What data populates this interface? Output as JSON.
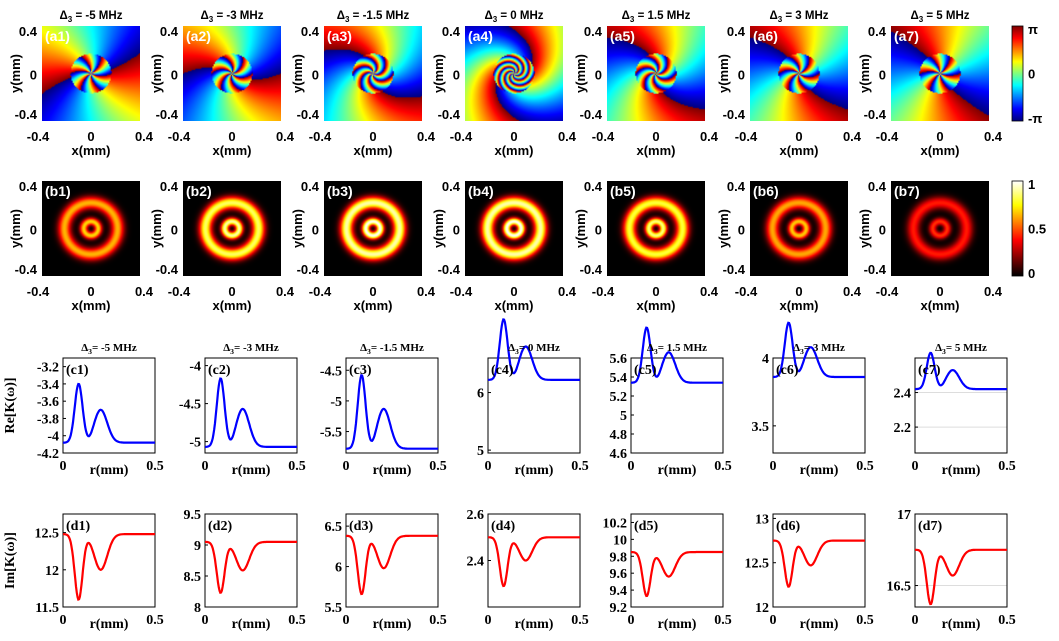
{
  "chart_data": [
    {
      "type": "heatmap",
      "row": "a",
      "description_row": "phase maps",
      "xlabel": "x(mm)",
      "ylabel": "y(mm)",
      "xticks": [
        "-0.4",
        "0",
        "0.4"
      ],
      "yticks": [
        "0.4",
        "0",
        "-0.4"
      ],
      "colorbar": {
        "ticks": [
          "π",
          "0",
          "-π"
        ],
        "colormap": "jet"
      },
      "panels": [
        {
          "label": "(a1)",
          "title_sym": "Δ",
          "title_sub": "3",
          "title_val": " = -5 MHz",
          "twist": 0.6
        },
        {
          "label": "(a2)",
          "title_sym": "Δ",
          "title_sub": "3",
          "title_val": " = -3 MHz",
          "twist": 1.1
        },
        {
          "label": "(a3)",
          "title_sym": "Δ",
          "title_sub": "3",
          "title_val": " = -1.5 MHz",
          "twist": 2.0
        },
        {
          "label": "(a4)",
          "title_sym": "Δ",
          "title_sub": "3",
          "title_val": " = 0 MHz",
          "twist": 4.0
        },
        {
          "label": "(a5)",
          "title_sym": "Δ",
          "title_sub": "3",
          "title_val": " = 1.5 MHz",
          "twist": 1.6
        },
        {
          "label": "(a6)",
          "title_sym": "Δ",
          "title_sub": "3",
          "title_val": " = 3 MHz",
          "twist": 0.9
        },
        {
          "label": "(a7)",
          "title_sym": "Δ",
          "title_sub": "3",
          "title_val": " = 5 MHz",
          "twist": 0.5
        }
      ]
    },
    {
      "type": "heatmap",
      "row": "b",
      "xlabel": "x(mm)",
      "ylabel": "y(mm)",
      "xticks": [
        "-0.4",
        "0",
        "0.4"
      ],
      "yticks": [
        "0.4",
        "0",
        "-0.4"
      ],
      "colorbar": {
        "ticks": [
          "1",
          "0.5",
          "0"
        ],
        "colormap": "hot"
      },
      "panels": [
        {
          "label": "(b1)",
          "brightness": 0.7
        },
        {
          "label": "(b2)",
          "brightness": 0.92
        },
        {
          "label": "(b3)",
          "brightness": 1.0
        },
        {
          "label": "(b4)",
          "brightness": 1.0
        },
        {
          "label": "(b5)",
          "brightness": 0.88
        },
        {
          "label": "(b6)",
          "brightness": 0.68
        },
        {
          "label": "(b7)",
          "brightness": 0.45
        }
      ]
    },
    {
      "type": "line",
      "row": "c",
      "xlabel": "r(mm)",
      "ylabel": "Re[K(ω)]",
      "x_range": [
        0,
        0.5
      ],
      "xticks": [
        "0",
        "0.5"
      ],
      "series_color": "#0000ff",
      "panels": [
        {
          "label": "(c1)",
          "title_sym": "Δ",
          "title_sub": "3",
          "title_val": "= -5 MHz",
          "ylim": [
            -4.2,
            -3.1
          ],
          "yticks": [
            -3.2,
            -3.4,
            -3.6,
            -3.8,
            -4,
            -4.2
          ],
          "ytick_labels": [
            "-3.2",
            "-3.4",
            "-3.6",
            "-3.8",
            "-4",
            "-4.2"
          ],
          "base": -4.08,
          "a1": 0.68,
          "a2": 0.38,
          "plateau_drop": 0
        },
        {
          "label": "(c2)",
          "title_sym": "Δ",
          "title_sub": "3",
          "title_val": "= -3 MHz",
          "ylim": [
            -5.15,
            -3.9
          ],
          "yticks": [
            -4,
            -4.5,
            -5
          ],
          "ytick_labels": [
            "-4",
            "-4.5",
            "-5"
          ],
          "base": -5.07,
          "a1": 0.9,
          "a2": 0.5,
          "plateau_drop": 0
        },
        {
          "label": "(c3)",
          "title_sym": "Δ",
          "title_sub": "3",
          "title_val": "= -1.5 MHz",
          "ylim": [
            -5.85,
            -4.3
          ],
          "yticks": [
            -4.5,
            -5,
            -5.5
          ],
          "ytick_labels": [
            "-4.5",
            "-5",
            "-5.5"
          ],
          "base": -5.78,
          "a1": 1.2,
          "a2": 0.65,
          "plateau_drop": 0
        },
        {
          "label": "(c4)",
          "title_sym": "Δ",
          "title_sub": "3",
          "title_val": "= 0 MHz",
          "ylim": [
            4.95,
            6.6
          ],
          "yticks": [
            5,
            6
          ],
          "ytick_labels": [
            "5",
            "6"
          ],
          "base": 6.22,
          "a1": 1.05,
          "a2": 0.58,
          "plateau_drop": 0.05
        },
        {
          "label": "(c5)",
          "title_sym": "Δ",
          "title_sub": "3",
          "title_val": "= 1.5 MHz",
          "ylim": [
            4.6,
            5.6
          ],
          "yticks": [
            5.6,
            5.4,
            5.2,
            5,
            4.8,
            4.6
          ],
          "ytick_labels": [
            "5.6",
            "5.4",
            "5.2",
            "5",
            "4.8",
            "4.6"
          ],
          "base": 5.34,
          "a1": 0.58,
          "a2": 0.32,
          "plateau_drop": 0.05
        },
        {
          "label": "(c6)",
          "title_sym": "Δ",
          "title_sub": "3",
          "title_val": "= 3 MHz",
          "ylim": [
            3.3,
            4.0
          ],
          "yticks": [
            4,
            3.5
          ],
          "ytick_labels": [
            "4",
            "3.5"
          ],
          "base": 3.86,
          "a1": 0.4,
          "a2": 0.22,
          "plateau_drop": 0.02
        },
        {
          "label": "(c7)",
          "title_sym": "Δ",
          "title_sub": "3",
          "title_val": "= 5 MHz",
          "ylim": [
            2.05,
            2.6
          ],
          "yticks": [
            2.4,
            2.2
          ],
          "ytick_labels": [
            "2.4",
            "2.2"
          ],
          "base": 2.42,
          "a1": 0.21,
          "a2": 0.11,
          "plateau_drop": 0.01,
          "gridlines": [
            2.4,
            2.2
          ]
        }
      ]
    },
    {
      "type": "line",
      "row": "d",
      "xlabel": "r(mm)",
      "ylabel": "Im[K(ω)]",
      "x_range": [
        0,
        0.5
      ],
      "xticks": [
        "0",
        "0.5"
      ],
      "series_color": "#ff0000",
      "panels": [
        {
          "label": "(d1)",
          "ylim": [
            11.5,
            12.75
          ],
          "yticks": [
            12.5,
            12,
            11.5
          ],
          "ytick_labels": [
            "12.5",
            "12",
            "11.5"
          ],
          "base": 12.48,
          "a1": 0.88,
          "a2": 0.48,
          "plateau_drop": 0
        },
        {
          "label": "(d2)",
          "ylim": [
            8.0,
            9.5
          ],
          "yticks": [
            9.5,
            9,
            8.5,
            8
          ],
          "ytick_labels": [
            "9.5",
            "9",
            "8.5",
            "8"
          ],
          "base": 9.05,
          "a1": 0.82,
          "a2": 0.46,
          "plateau_drop": 0
        },
        {
          "label": "(d3)",
          "ylim": [
            5.5,
            6.65
          ],
          "yticks": [
            6.5,
            6,
            5.5
          ],
          "ytick_labels": [
            "6.5",
            "6",
            "5.5"
          ],
          "base": 6.38,
          "a1": 0.72,
          "a2": 0.4,
          "plateau_drop": 0
        },
        {
          "label": "(d4)",
          "ylim": [
            2.2,
            2.6
          ],
          "yticks": [
            2.6,
            2.4
          ],
          "ytick_labels": [
            "2.6",
            "2.4"
          ],
          "base": 2.5,
          "a1": 0.21,
          "a2": 0.1,
          "plateau_drop": 0
        },
        {
          "label": "(d5)",
          "ylim": [
            9.2,
            10.3
          ],
          "yticks": [
            10.2,
            10,
            9.8,
            9.6,
            9.4,
            9.2
          ],
          "ytick_labels": [
            "10.2",
            "10",
            "9.8",
            "9.6",
            "9.4",
            "9.2"
          ],
          "base": 9.85,
          "a1": 0.52,
          "a2": 0.29,
          "plateau_drop": 0
        },
        {
          "label": "(d6)",
          "ylim": [
            12.0,
            13.05
          ],
          "yticks": [
            13,
            12.5,
            12
          ],
          "ytick_labels": [
            "13",
            "12.5",
            "12"
          ],
          "base": 12.75,
          "a1": 0.52,
          "a2": 0.28,
          "plateau_drop": 0
        },
        {
          "label": "(d7)",
          "ylim": [
            16.35,
            17.0
          ],
          "yticks": [
            17,
            16.5
          ],
          "ytick_labels": [
            "17",
            "16.5"
          ],
          "base": 16.75,
          "a1": 0.38,
          "a2": 0.18,
          "plateau_drop": 0,
          "gridlines": [
            16.5
          ]
        }
      ]
    }
  ]
}
